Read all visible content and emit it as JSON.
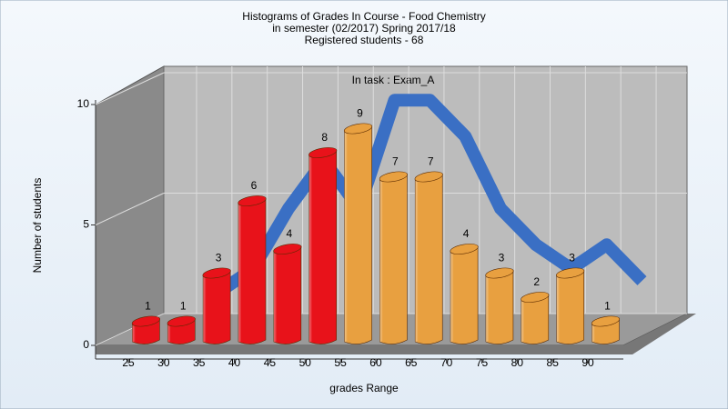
{
  "chart_data": {
    "type": "bar",
    "title": [
      "Histograms of Grades  In Course - Food Chemistry",
      "in semester  (02/2017) Spring 2017/18",
      "Registered students - 68"
    ],
    "subtitle": "In task : Exam_A",
    "xlabel": "grades Range",
    "ylabel": "Number of students",
    "categories": [
      "25",
      "30",
      "35",
      "40",
      "45",
      "50",
      "55",
      "60",
      "65",
      "70",
      "75",
      "80",
      "85",
      "90"
    ],
    "values": [
      1,
      1,
      3,
      6,
      4,
      8,
      9,
      7,
      7,
      4,
      3,
      2,
      3,
      1
    ],
    "colors": [
      "#e8121a",
      "#e8121a",
      "#e8121a",
      "#e8121a",
      "#e8121a",
      "#e8121a",
      "#e8a040",
      "#e8a040",
      "#e8a040",
      "#e8a040",
      "#e8a040",
      "#e8a040",
      "#e8a040",
      "#e8a040"
    ],
    "curve": {
      "color": "#3a6fc4",
      "values": [
        null,
        1.5,
        2.5,
        5,
        7,
        5,
        9.5,
        9.5,
        8,
        5,
        3.5,
        2.5,
        3.5,
        2
      ]
    },
    "ylim": [
      0,
      10
    ],
    "yticks": [
      0,
      5,
      10
    ],
    "grid": true
  }
}
